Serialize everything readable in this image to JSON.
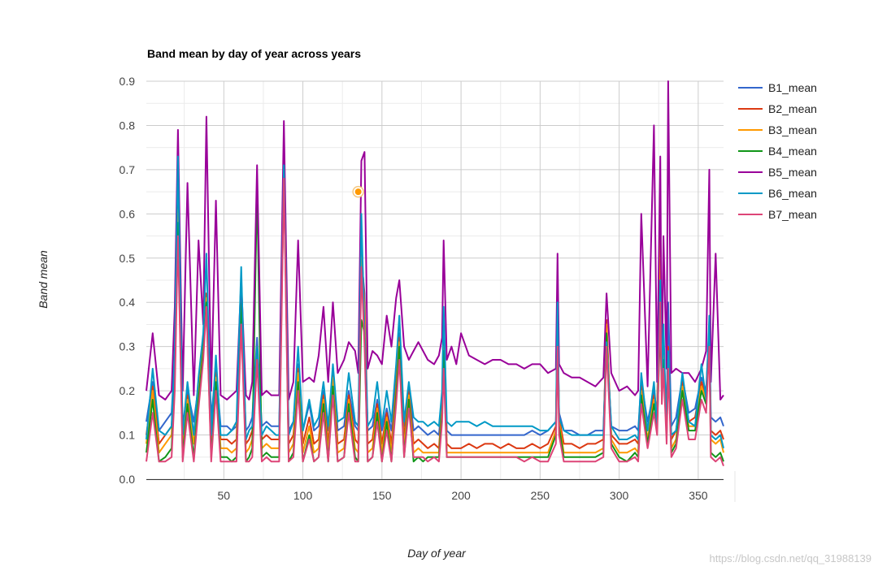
{
  "chart_data": {
    "type": "line",
    "title": "Band mean by day of year across years",
    "xlabel": "Day of year",
    "ylabel": "Band mean",
    "xlim": [
      1,
      366
    ],
    "ylim": [
      0,
      0.9
    ],
    "x_ticks": [
      50,
      100,
      150,
      200,
      250,
      300,
      350
    ],
    "y_ticks": [
      0.0,
      0.1,
      0.2,
      0.3,
      0.4,
      0.5,
      0.6,
      0.7,
      0.8,
      0.9
    ],
    "grid": true,
    "legend_position": "right",
    "x": [
      1,
      5,
      9,
      13,
      17,
      19,
      21,
      24,
      27,
      31,
      34,
      37,
      39,
      42,
      45,
      48,
      52,
      55,
      58,
      61,
      64,
      66,
      68,
      71,
      74,
      77,
      80,
      83,
      85,
      88,
      91,
      94,
      97,
      100,
      104,
      107,
      110,
      113,
      116,
      119,
      122,
      126,
      129,
      133,
      135,
      137,
      139,
      141,
      144,
      147,
      150,
      153,
      156,
      159,
      161,
      164,
      167,
      170,
      173,
      176,
      179,
      183,
      186,
      188,
      189,
      191,
      194,
      197,
      200,
      205,
      210,
      215,
      220,
      225,
      230,
      235,
      240,
      245,
      250,
      255,
      260,
      261,
      262,
      265,
      270,
      275,
      280,
      285,
      290,
      292,
      295,
      300,
      305,
      310,
      312,
      314,
      318,
      322,
      324,
      326,
      327,
      328,
      330,
      331,
      333,
      336,
      340,
      344,
      348,
      352,
      355,
      357,
      358,
      361,
      364,
      366
    ],
    "series": [
      {
        "name": "B1_mean",
        "color": "#3366cc",
        "values": [
          0.13,
          0.22,
          0.11,
          0.13,
          0.15,
          0.28,
          0.6,
          0.12,
          0.2,
          0.13,
          0.21,
          0.32,
          0.42,
          0.14,
          0.25,
          0.12,
          0.12,
          0.11,
          0.12,
          0.37,
          0.11,
          0.12,
          0.14,
          0.32,
          0.12,
          0.13,
          0.12,
          0.12,
          0.12,
          0.68,
          0.11,
          0.13,
          0.26,
          0.11,
          0.17,
          0.11,
          0.12,
          0.2,
          0.11,
          0.25,
          0.11,
          0.12,
          0.2,
          0.12,
          0.11,
          0.5,
          0.42,
          0.11,
          0.12,
          0.18,
          0.11,
          0.16,
          0.11,
          0.22,
          0.33,
          0.12,
          0.21,
          0.11,
          0.12,
          0.11,
          0.1,
          0.11,
          0.1,
          0.18,
          0.33,
          0.11,
          0.1,
          0.1,
          0.1,
          0.1,
          0.1,
          0.1,
          0.1,
          0.1,
          0.1,
          0.1,
          0.1,
          0.11,
          0.1,
          0.11,
          0.13,
          0.35,
          0.15,
          0.11,
          0.11,
          0.1,
          0.1,
          0.11,
          0.11,
          0.32,
          0.12,
          0.11,
          0.11,
          0.12,
          0.11,
          0.22,
          0.13,
          0.2,
          0.15,
          0.55,
          0.22,
          0.3,
          0.14,
          0.4,
          0.12,
          0.14,
          0.23,
          0.15,
          0.16,
          0.23,
          0.2,
          0.35,
          0.14,
          0.13,
          0.14,
          0.12
        ]
      },
      {
        "name": "B2_mean",
        "color": "#dc3912",
        "values": [
          0.1,
          0.21,
          0.08,
          0.1,
          0.12,
          0.26,
          0.62,
          0.09,
          0.19,
          0.1,
          0.2,
          0.31,
          0.42,
          0.1,
          0.24,
          0.09,
          0.09,
          0.08,
          0.09,
          0.46,
          0.08,
          0.09,
          0.11,
          0.3,
          0.09,
          0.1,
          0.09,
          0.09,
          0.09,
          0.7,
          0.08,
          0.1,
          0.25,
          0.08,
          0.14,
          0.08,
          0.09,
          0.19,
          0.08,
          0.24,
          0.08,
          0.09,
          0.19,
          0.09,
          0.08,
          0.52,
          0.4,
          0.08,
          0.09,
          0.17,
          0.08,
          0.15,
          0.08,
          0.21,
          0.32,
          0.09,
          0.2,
          0.08,
          0.09,
          0.08,
          0.07,
          0.08,
          0.07,
          0.17,
          0.31,
          0.08,
          0.07,
          0.07,
          0.07,
          0.08,
          0.07,
          0.08,
          0.08,
          0.07,
          0.08,
          0.07,
          0.07,
          0.08,
          0.07,
          0.08,
          0.12,
          0.36,
          0.14,
          0.08,
          0.08,
          0.07,
          0.08,
          0.08,
          0.09,
          0.36,
          0.1,
          0.08,
          0.08,
          0.09,
          0.08,
          0.21,
          0.11,
          0.19,
          0.14,
          0.6,
          0.21,
          0.29,
          0.12,
          0.3,
          0.09,
          0.11,
          0.22,
          0.13,
          0.14,
          0.22,
          0.19,
          0.34,
          0.11,
          0.1,
          0.11,
          0.09
        ]
      },
      {
        "name": "B3_mean",
        "color": "#ff9900",
        "values": [
          0.08,
          0.2,
          0.06,
          0.08,
          0.1,
          0.25,
          0.61,
          0.07,
          0.18,
          0.08,
          0.19,
          0.3,
          0.41,
          0.08,
          0.23,
          0.07,
          0.07,
          0.06,
          0.07,
          0.45,
          0.06,
          0.07,
          0.09,
          0.29,
          0.07,
          0.08,
          0.07,
          0.07,
          0.07,
          0.69,
          0.06,
          0.08,
          0.24,
          0.06,
          0.12,
          0.06,
          0.07,
          0.18,
          0.06,
          0.23,
          0.06,
          0.07,
          0.18,
          0.07,
          0.06,
          0.51,
          0.38,
          0.06,
          0.07,
          0.16,
          0.06,
          0.14,
          0.06,
          0.2,
          0.31,
          0.07,
          0.19,
          0.06,
          0.07,
          0.06,
          0.06,
          0.06,
          0.06,
          0.16,
          0.3,
          0.06,
          0.06,
          0.06,
          0.06,
          0.06,
          0.06,
          0.06,
          0.06,
          0.06,
          0.06,
          0.06,
          0.06,
          0.06,
          0.06,
          0.06,
          0.11,
          0.35,
          0.13,
          0.06,
          0.06,
          0.06,
          0.06,
          0.06,
          0.07,
          0.35,
          0.09,
          0.06,
          0.06,
          0.07,
          0.06,
          0.2,
          0.09,
          0.18,
          0.13,
          0.58,
          0.2,
          0.28,
          0.11,
          0.28,
          0.07,
          0.09,
          0.21,
          0.12,
          0.12,
          0.21,
          0.18,
          0.33,
          0.09,
          0.08,
          0.09,
          0.06
        ]
      },
      {
        "name": "B4_mean",
        "color": "#109618",
        "values": [
          0.06,
          0.18,
          0.04,
          0.05,
          0.07,
          0.23,
          0.58,
          0.05,
          0.17,
          0.05,
          0.18,
          0.29,
          0.4,
          0.05,
          0.22,
          0.05,
          0.05,
          0.04,
          0.05,
          0.4,
          0.04,
          0.05,
          0.07,
          0.66,
          0.05,
          0.06,
          0.05,
          0.05,
          0.05,
          0.76,
          0.04,
          0.06,
          0.22,
          0.04,
          0.1,
          0.04,
          0.05,
          0.17,
          0.04,
          0.21,
          0.04,
          0.05,
          0.17,
          0.05,
          0.04,
          0.36,
          0.33,
          0.04,
          0.05,
          0.15,
          0.04,
          0.13,
          0.04,
          0.19,
          0.3,
          0.05,
          0.18,
          0.04,
          0.05,
          0.04,
          0.05,
          0.05,
          0.05,
          0.15,
          0.29,
          0.05,
          0.05,
          0.05,
          0.05,
          0.05,
          0.05,
          0.05,
          0.05,
          0.05,
          0.05,
          0.05,
          0.05,
          0.05,
          0.05,
          0.05,
          0.1,
          0.34,
          0.12,
          0.05,
          0.05,
          0.05,
          0.05,
          0.05,
          0.06,
          0.33,
          0.08,
          0.05,
          0.04,
          0.06,
          0.05,
          0.19,
          0.08,
          0.17,
          0.12,
          0.35,
          0.19,
          0.27,
          0.1,
          0.27,
          0.06,
          0.08,
          0.2,
          0.11,
          0.11,
          0.2,
          0.17,
          0.32,
          0.06,
          0.05,
          0.06,
          0.04
        ]
      },
      {
        "name": "B5_mean",
        "color": "#990099",
        "values": [
          0.2,
          0.33,
          0.19,
          0.18,
          0.2,
          0.39,
          0.79,
          0.2,
          0.67,
          0.19,
          0.54,
          0.35,
          0.82,
          0.2,
          0.63,
          0.19,
          0.18,
          0.19,
          0.2,
          0.45,
          0.19,
          0.18,
          0.22,
          0.71,
          0.19,
          0.2,
          0.19,
          0.19,
          0.19,
          0.81,
          0.18,
          0.22,
          0.54,
          0.22,
          0.23,
          0.22,
          0.28,
          0.39,
          0.22,
          0.4,
          0.24,
          0.27,
          0.31,
          0.29,
          0.24,
          0.72,
          0.74,
          0.25,
          0.29,
          0.28,
          0.26,
          0.37,
          0.3,
          0.41,
          0.45,
          0.3,
          0.27,
          0.29,
          0.31,
          0.29,
          0.27,
          0.26,
          0.28,
          0.32,
          0.54,
          0.27,
          0.3,
          0.26,
          0.33,
          0.28,
          0.27,
          0.26,
          0.27,
          0.27,
          0.26,
          0.26,
          0.25,
          0.26,
          0.26,
          0.24,
          0.25,
          0.51,
          0.26,
          0.24,
          0.23,
          0.23,
          0.22,
          0.21,
          0.23,
          0.42,
          0.24,
          0.2,
          0.21,
          0.19,
          0.2,
          0.6,
          0.21,
          0.8,
          0.22,
          0.73,
          0.22,
          0.55,
          0.25,
          0.9,
          0.24,
          0.25,
          0.24,
          0.24,
          0.22,
          0.25,
          0.29,
          0.7,
          0.22,
          0.51,
          0.18,
          0.19
        ]
      },
      {
        "name": "B6_mean",
        "color": "#0099c6",
        "values": [
          0.09,
          0.25,
          0.11,
          0.1,
          0.12,
          0.3,
          0.73,
          0.1,
          0.22,
          0.1,
          0.23,
          0.33,
          0.51,
          0.1,
          0.28,
          0.1,
          0.1,
          0.11,
          0.13,
          0.48,
          0.09,
          0.11,
          0.12,
          0.3,
          0.1,
          0.12,
          0.11,
          0.1,
          0.1,
          0.71,
          0.1,
          0.13,
          0.3,
          0.11,
          0.18,
          0.12,
          0.14,
          0.22,
          0.12,
          0.26,
          0.13,
          0.14,
          0.24,
          0.13,
          0.12,
          0.6,
          0.33,
          0.12,
          0.14,
          0.22,
          0.12,
          0.2,
          0.13,
          0.26,
          0.37,
          0.13,
          0.22,
          0.14,
          0.13,
          0.13,
          0.12,
          0.13,
          0.12,
          0.2,
          0.39,
          0.13,
          0.12,
          0.13,
          0.13,
          0.13,
          0.12,
          0.13,
          0.12,
          0.12,
          0.12,
          0.12,
          0.12,
          0.12,
          0.11,
          0.11,
          0.13,
          0.4,
          0.14,
          0.11,
          0.1,
          0.1,
          0.1,
          0.1,
          0.1,
          0.31,
          0.12,
          0.09,
          0.09,
          0.1,
          0.09,
          0.24,
          0.11,
          0.22,
          0.12,
          0.45,
          0.22,
          0.35,
          0.1,
          0.29,
          0.1,
          0.11,
          0.24,
          0.13,
          0.12,
          0.26,
          0.18,
          0.37,
          0.1,
          0.09,
          0.1,
          0.07
        ]
      },
      {
        "name": "B7_mean",
        "color": "#dd4477",
        "values": [
          0.04,
          0.15,
          0.04,
          0.04,
          0.05,
          0.2,
          0.55,
          0.04,
          0.15,
          0.04,
          0.16,
          0.27,
          0.39,
          0.04,
          0.2,
          0.04,
          0.04,
          0.04,
          0.04,
          0.35,
          0.04,
          0.04,
          0.05,
          0.27,
          0.04,
          0.05,
          0.04,
          0.04,
          0.04,
          0.68,
          0.04,
          0.05,
          0.2,
          0.04,
          0.09,
          0.04,
          0.05,
          0.15,
          0.04,
          0.19,
          0.04,
          0.05,
          0.15,
          0.04,
          0.04,
          0.48,
          0.3,
          0.04,
          0.05,
          0.13,
          0.04,
          0.11,
          0.04,
          0.17,
          0.27,
          0.05,
          0.16,
          0.05,
          0.05,
          0.05,
          0.04,
          0.05,
          0.04,
          0.13,
          0.25,
          0.05,
          0.05,
          0.05,
          0.05,
          0.05,
          0.05,
          0.05,
          0.05,
          0.05,
          0.05,
          0.05,
          0.04,
          0.05,
          0.04,
          0.04,
          0.08,
          0.3,
          0.1,
          0.04,
          0.04,
          0.04,
          0.04,
          0.04,
          0.05,
          0.3,
          0.07,
          0.04,
          0.04,
          0.05,
          0.04,
          0.17,
          0.07,
          0.15,
          0.1,
          0.4,
          0.17,
          0.25,
          0.08,
          0.25,
          0.05,
          0.07,
          0.18,
          0.09,
          0.09,
          0.18,
          0.15,
          0.3,
          0.05,
          0.04,
          0.05,
          0.03
        ]
      }
    ],
    "highlight": {
      "x": 135,
      "y": 0.65
    }
  },
  "watermark": "https://blog.csdn.net/qq_31988139"
}
